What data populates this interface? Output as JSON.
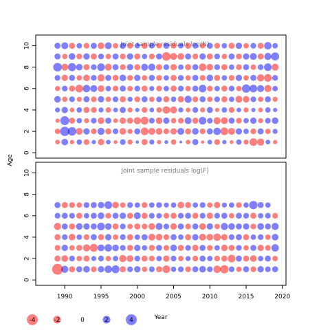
{
  "chart_data": [
    {
      "type": "scatter",
      "panel": "top",
      "title": "Joint sample residuals log(N)",
      "xlabel": "",
      "ylabel": "Age",
      "xlim": [
        1986,
        2020.5
      ],
      "ylim": [
        -0.5,
        11
      ],
      "x_ticks": [],
      "y_ticks": [
        "0",
        "2",
        "4",
        "6",
        "8",
        "10"
      ],
      "ages": [
        1,
        2,
        3,
        4,
        5,
        6,
        7,
        8,
        9,
        10
      ],
      "years": [
        1989,
        1990,
        1991,
        1992,
        1993,
        1994,
        1995,
        1996,
        1997,
        1998,
        1999,
        2000,
        2001,
        2002,
        2003,
        2004,
        2005,
        2006,
        2007,
        2008,
        2009,
        2010,
        2011,
        2012,
        2013,
        2014,
        2015,
        2016,
        2017,
        2018,
        2019
      ],
      "residuals": [
        [
          -0.6,
          1.2,
          -0.5,
          0.8,
          -0.9,
          0.5,
          -1.1,
          0.6,
          -0.4,
          0.9,
          -0.7,
          0.3,
          -1.0,
          0.7,
          -0.5,
          0.4,
          -0.8,
          0.2,
          -0.6,
          1.0,
          -0.3,
          0.6,
          -0.9,
          0.5,
          -0.4,
          0.8,
          -0.7,
          -1.6,
          -1.4,
          0.6,
          -0.5
        ],
        [
          -0.8,
          2.4,
          2.0,
          -1.3,
          1.1,
          -0.9,
          1.4,
          -1.0,
          0.9,
          -1.2,
          -0.7,
          1.0,
          -1.6,
          -1.3,
          -1.2,
          -0.9,
          -1.1,
          1.3,
          -1.0,
          1.2,
          -0.9,
          1.0,
          1.5,
          -1.6,
          -1.3,
          1.1,
          0.8,
          -0.9,
          1.0,
          -0.8,
          0.7
        ],
        [
          -0.5,
          2.2,
          -1.0,
          0.8,
          -0.7,
          0.9,
          -1.2,
          1.0,
          -0.6,
          -1.1,
          -1.0,
          -1.4,
          -1.7,
          0.9,
          -1.2,
          1.1,
          -0.8,
          -0.9,
          1.3,
          -1.0,
          1.6,
          0.9,
          -1.4,
          -1.3,
          1.0,
          -0.9,
          0.8,
          1.1,
          -0.7,
          0.9,
          1.2
        ],
        [
          0.7,
          1.1,
          -0.6,
          0.8,
          -1.0,
          -0.9,
          0.7,
          -0.8,
          0.6,
          1.0,
          -0.7,
          0.5,
          -0.9,
          0.6,
          -0.8,
          -1.5,
          -1.3,
          0.7,
          -0.6,
          0.9,
          -0.7,
          1.0,
          -0.5,
          0.8,
          -0.9,
          0.6,
          -0.7,
          0.5,
          -0.6,
          0.8,
          0.5
        ],
        [
          1.2,
          -0.8,
          0.9,
          -0.7,
          1.0,
          -0.9,
          1.1,
          -0.8,
          0.9,
          -1.0,
          0.7,
          -0.9,
          1.0,
          -0.8,
          0.9,
          -1.0,
          0.8,
          -1.1,
          1.4,
          -0.9,
          1.0,
          -0.8,
          0.9,
          -1.0,
          0.8,
          -1.3,
          -1.2,
          0.9,
          -0.8,
          1.0,
          -0.7
        ],
        [
          -0.7,
          0.9,
          -1.0,
          -1.6,
          1.5,
          1.3,
          -1.2,
          0.8,
          -0.9,
          1.0,
          -0.8,
          0.9,
          -1.0,
          0.7,
          -0.9,
          0.8,
          -1.0,
          0.9,
          -0.8,
          1.0,
          1.6,
          -0.9,
          0.8,
          -1.0,
          0.9,
          -0.8,
          1.9,
          1.6,
          1.3,
          -1.4,
          0.8
        ],
        [
          0.9,
          -1.1,
          1.0,
          -0.8,
          -1.2,
          0.9,
          -1.4,
          1.0,
          -1.0,
          1.2,
          -0.9,
          1.1,
          -0.8,
          1.0,
          -0.9,
          0.8,
          -1.0,
          0.9,
          -0.8,
          1.0,
          -0.9,
          1.2,
          -1.0,
          0.8,
          -0.9,
          1.1,
          -0.8,
          1.0,
          -1.4,
          -1.6,
          0.9
        ],
        [
          2.0,
          -1.3,
          1.8,
          1.2,
          -1.0,
          0.9,
          1.6,
          -1.3,
          1.0,
          -0.9,
          1.1,
          -1.0,
          1.3,
          1.4,
          -1.0,
          0.9,
          -1.1,
          0.8,
          -1.0,
          1.0,
          -1.5,
          -1.2,
          0.9,
          -1.0,
          0.8,
          -0.9,
          1.0,
          -0.8,
          0.9,
          1.6,
          -1.3
        ],
        [
          1.0,
          -0.8,
          1.2,
          -0.9,
          1.1,
          -1.0,
          0.9,
          -0.8,
          1.0,
          -0.9,
          1.1,
          -1.0,
          0.8,
          -0.9,
          1.0,
          -2.0,
          -1.3,
          -1.2,
          1.0,
          -0.9,
          1.1,
          -1.0,
          0.9,
          -0.8,
          1.0,
          -0.9,
          1.1,
          1.3,
          -1.0,
          1.4,
          1.8
        ],
        [
          1.0,
          1.3,
          -1.0,
          0.8,
          -0.9,
          1.0,
          -1.2,
          1.3,
          -0.8,
          1.0,
          -0.9,
          0.8,
          -1.0,
          0.9,
          -0.8,
          1.0,
          -0.9,
          0.8,
          -1.0,
          0.9,
          -0.8,
          1.0,
          -0.9,
          0.8,
          -1.0,
          1.1,
          -0.8,
          0.9,
          -1.0,
          1.5,
          0.8
        ]
      ]
    },
    {
      "type": "scatter",
      "panel": "bottom",
      "title": "Joint sample residuals log(F)",
      "xlabel": "Year",
      "ylabel": "",
      "xlim": [
        1986,
        2020.5
      ],
      "ylim": [
        -0.5,
        11
      ],
      "x_ticks": [
        "1990",
        "1995",
        "2000",
        "2005",
        "2010",
        "2015",
        "2020"
      ],
      "y_ticks": [
        "0",
        "2",
        "4",
        "6",
        "8",
        "10"
      ],
      "ages": [
        1,
        2,
        3,
        4,
        5,
        6,
        7
      ],
      "years": [
        1989,
        1990,
        1991,
        1992,
        1993,
        1994,
        1995,
        1996,
        1997,
        1998,
        1999,
        2000,
        2001,
        2002,
        2003,
        2004,
        2005,
        2006,
        2007,
        2008,
        2009,
        2010,
        2011,
        2012,
        2013,
        2014,
        2015,
        2016,
        2017,
        2018,
        2019
      ],
      "residuals": [
        [
          -3.2,
          1.4,
          -1.0,
          1.0,
          1.2,
          -0.9,
          1.1,
          1.5,
          1.7,
          -1.0,
          0.9,
          1.1,
          -0.8,
          0.9,
          -1.0,
          -1.6,
          0.8,
          0.9,
          -0.9,
          1.0,
          1.2,
          0.9,
          -1.5,
          -1.9,
          0.9,
          -0.8,
          1.0,
          -0.9,
          1.1,
          0.9,
          1.0
        ],
        [
          -1.0,
          -1.2,
          0.9,
          -0.8,
          -1.0,
          0.7,
          0.9,
          -0.8,
          0.8,
          -1.4,
          -1.2,
          0.9,
          -1.0,
          -0.9,
          0.8,
          -1.1,
          0.9,
          -0.8,
          0.7,
          -0.9,
          1.0,
          0.8,
          -0.9,
          -1.0,
          -1.6,
          1.0,
          -1.0,
          -1.2,
          0.8,
          1.0,
          -0.8
        ],
        [
          -0.9,
          1.1,
          -0.8,
          -1.0,
          -1.4,
          -1.7,
          1.3,
          1.5,
          1.2,
          0.9,
          -1.0,
          1.1,
          0.8,
          -1.0,
          1.0,
          -0.9,
          1.2,
          -1.0,
          0.9,
          -1.1,
          1.0,
          -0.9,
          0.8,
          -1.2,
          -1.0,
          0.9,
          -0.8,
          1.0,
          -1.1,
          -0.9,
          1.5
        ],
        [
          -1.0,
          0.9,
          -1.2,
          0.8,
          -0.9,
          1.0,
          -1.0,
          1.1,
          -0.8,
          0.9,
          -1.0,
          0.8,
          1.0,
          -1.3,
          -1.2,
          -0.9,
          1.0,
          0.8,
          -1.0,
          1.1,
          -1.3,
          -1.2,
          -1.5,
          -1.1,
          0.9,
          1.0,
          -1.0,
          0.8,
          0.9,
          -0.8,
          1.2
        ],
        [
          -1.4,
          1.0,
          -1.0,
          1.2,
          1.1,
          1.0,
          1.6,
          1.2,
          -1.0,
          0.9,
          -0.8,
          -1.0,
          -0.9,
          -1.2,
          1.3,
          0.9,
          -1.1,
          1.0,
          -0.9,
          1.0,
          -1.2,
          1.1,
          -0.8,
          1.4,
          1.2,
          1.0,
          1.1,
          -0.9,
          1.2,
          1.0,
          1.4
        ],
        [
          0.9,
          1.0,
          0.9,
          -1.0,
          0.8,
          1.0,
          1.2,
          -0.9,
          1.0,
          1.1,
          -1.0,
          1.3,
          -1.0,
          0.9,
          0.8,
          -0.9,
          -1.0,
          0.9,
          1.0,
          -1.0,
          0.9,
          -1.1,
          0.9,
          1.0,
          -0.8,
          1.0,
          0.9,
          -1.0,
          0.8,
          0.9,
          -0.9
        ],
        [
          1.0,
          -1.0,
          -0.9,
          -0.8,
          0.9,
          1.0,
          1.1,
          1.6,
          -1.2,
          -0.8,
          0.9,
          0.8,
          -0.9,
          0.8,
          0.9,
          0.7,
          0.8,
          -1.2,
          -1.0,
          0.8,
          0.9,
          -0.8,
          -1.1,
          0.7,
          0.8,
          -0.9,
          0.8,
          1.9,
          1.0,
          0.8,
          0.0
        ]
      ]
    }
  ],
  "legend": {
    "items": [
      {
        "value": -4,
        "label": "-4"
      },
      {
        "value": -2,
        "label": "-2"
      },
      {
        "value": 0,
        "label": "0"
      },
      {
        "value": 2,
        "label": "2"
      },
      {
        "value": 4,
        "label": "4"
      }
    ],
    "placement": "bottom-left"
  },
  "colors": {
    "positive": "#0000ff",
    "negative": "#ff0000",
    "frame": "#000000",
    "title": "#777777"
  }
}
